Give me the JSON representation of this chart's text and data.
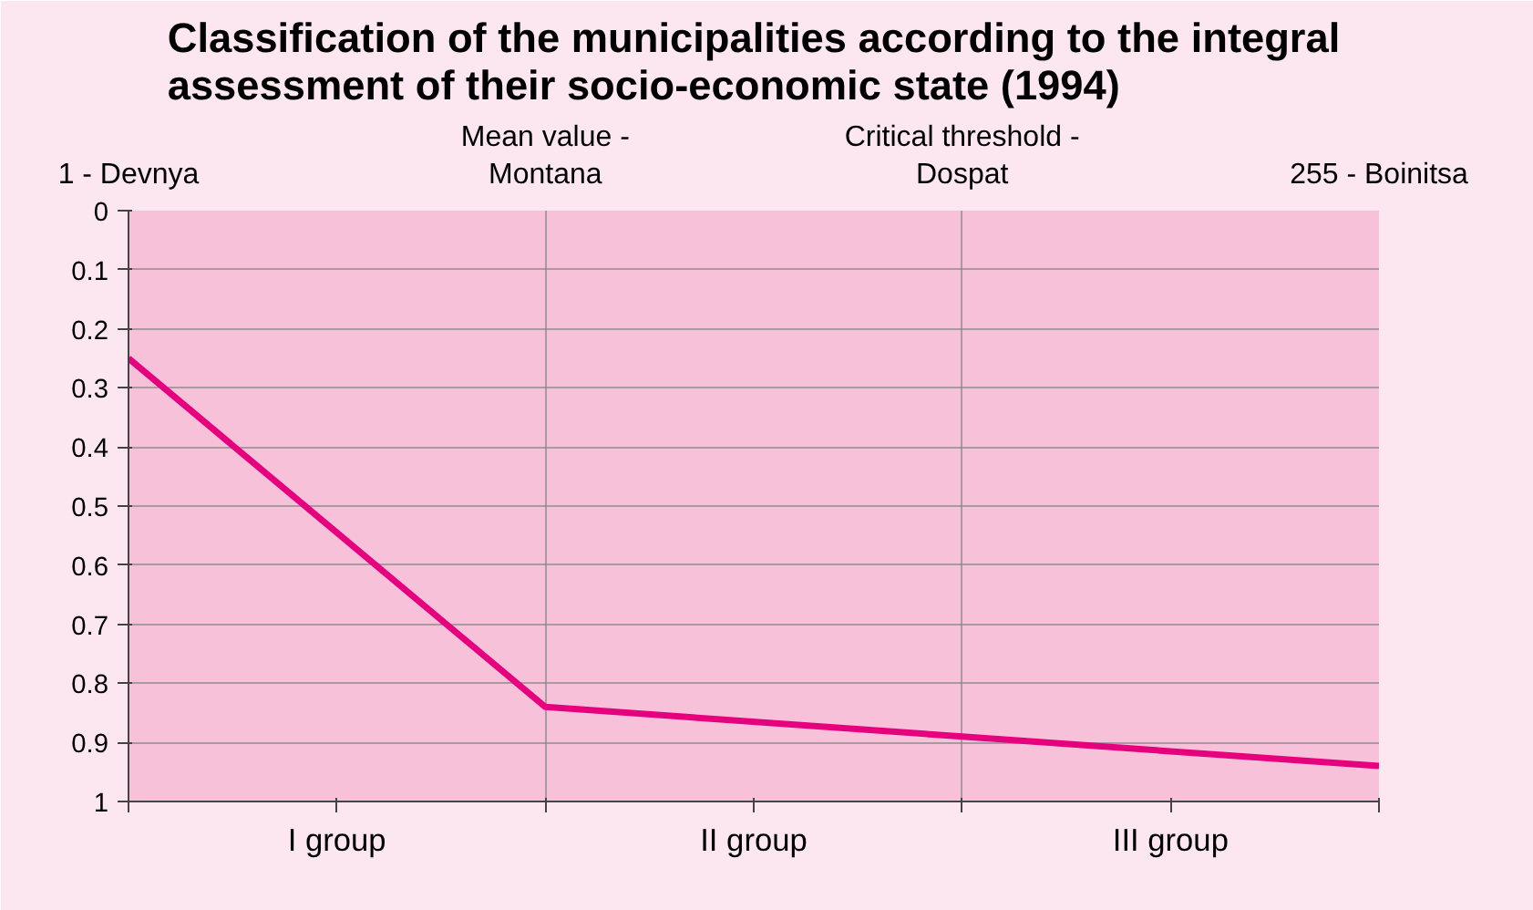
{
  "chart_data": {
    "type": "line",
    "title": "Classification of the municipalities according to the integral\nassessment of their socio-economic state (1994)",
    "categories": [
      "1 - Devnya",
      "Mean value -\nMontana",
      "Critical threshold -\nDospat",
      "255 - Boinitsa"
    ],
    "series": [
      {
        "color": "#e6007e",
        "values": [
          0.25,
          0.84,
          0.89,
          0.94
        ]
      }
    ],
    "annotations": [
      "I group",
      "II group",
      "III group"
    ],
    "ylim": [
      1,
      0
    ],
    "yticks": [
      0,
      0.1,
      0.2,
      0.3,
      0.4,
      0.5,
      0.6,
      0.7,
      0.8,
      0.9,
      1
    ],
    "grid": true,
    "marker": "none",
    "line_style": "solid"
  }
}
